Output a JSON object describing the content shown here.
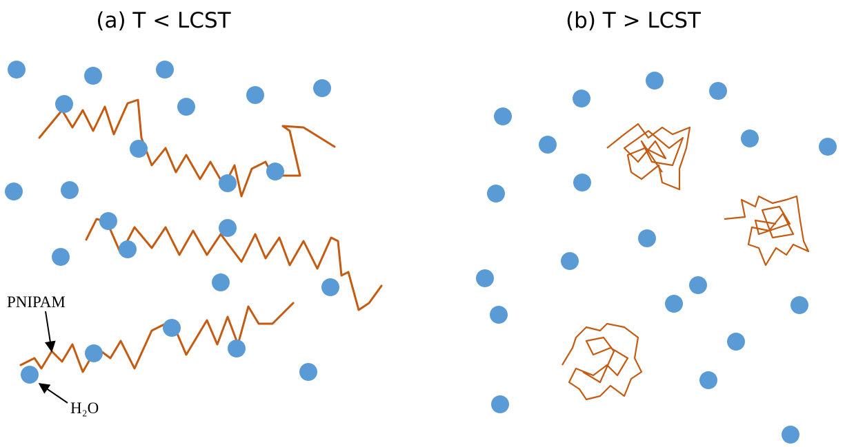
{
  "panels": [
    {
      "title": "(a) T < LCST"
    },
    {
      "title": "(b) T > LCST"
    }
  ],
  "labels": {
    "polymer": "PNIPAM",
    "water": "H₂O"
  }
}
